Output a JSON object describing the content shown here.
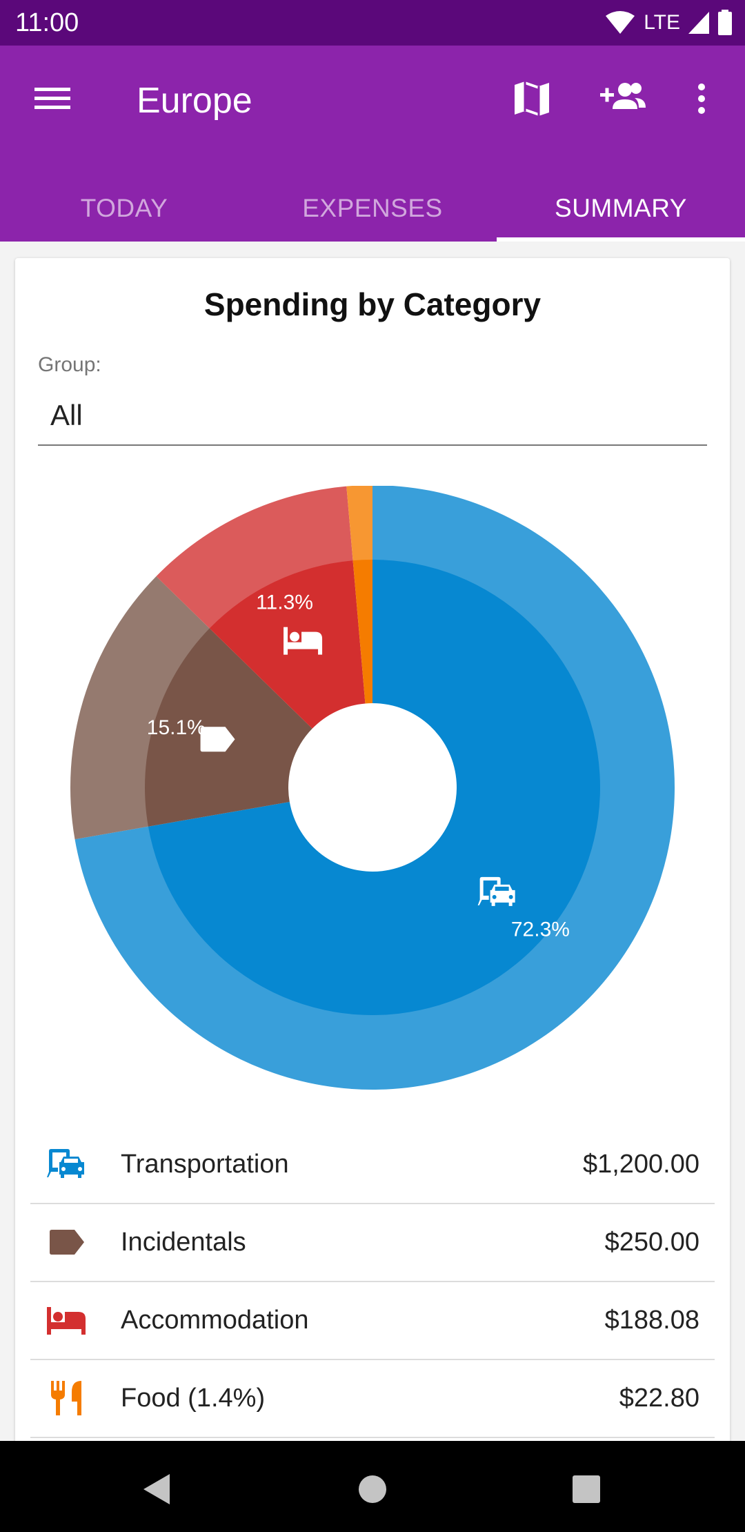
{
  "status_bar": {
    "time": "11:00",
    "network": "LTE"
  },
  "app_bar": {
    "title": "Europe",
    "icons": [
      "menu-icon",
      "map-icon",
      "add-person-icon",
      "more-vert-icon"
    ]
  },
  "tabs": [
    {
      "label": "TODAY",
      "active": false
    },
    {
      "label": "EXPENSES",
      "active": false
    },
    {
      "label": "SUMMARY",
      "active": true
    }
  ],
  "summary": {
    "title": "Spending by Category",
    "group_label": "Group:",
    "group_value": "All"
  },
  "chart_data": {
    "type": "pie",
    "categories": [
      "Transportation",
      "Incidentals",
      "Accommodation",
      "Food"
    ],
    "values": [
      1200.0,
      250.0,
      188.08,
      22.8
    ],
    "slice_labels": [
      "72.3%",
      "15.1%",
      "11.3%",
      ""
    ],
    "icons": [
      "transportation-icon",
      "incidentals-icon",
      "accommodation-icon",
      "food-icon"
    ],
    "colors_inner": [
      "#0788d1",
      "#795548",
      "#d32f2f",
      "#f57c00"
    ],
    "colors_outer": [
      "#399fda",
      "#957a6f",
      "#db5b5b",
      "#f79732"
    ]
  },
  "legend": [
    {
      "label": "Transportation",
      "amount": "$1,200.00",
      "icon": "transportation-icon",
      "color": "#0788d1"
    },
    {
      "label": "Incidentals",
      "amount": "$250.00",
      "icon": "incidentals-icon",
      "color": "#795548"
    },
    {
      "label": "Accommodation",
      "amount": "$188.08",
      "icon": "accommodation-icon",
      "color": "#d32f2f"
    },
    {
      "label": "Food (1.4%)",
      "amount": "$22.80",
      "icon": "food-icon",
      "color": "#f57c00"
    }
  ],
  "colors": {
    "status_bar": "#5b087a",
    "app_bar": "#8c24ab",
    "nav_bar": "#000000"
  }
}
